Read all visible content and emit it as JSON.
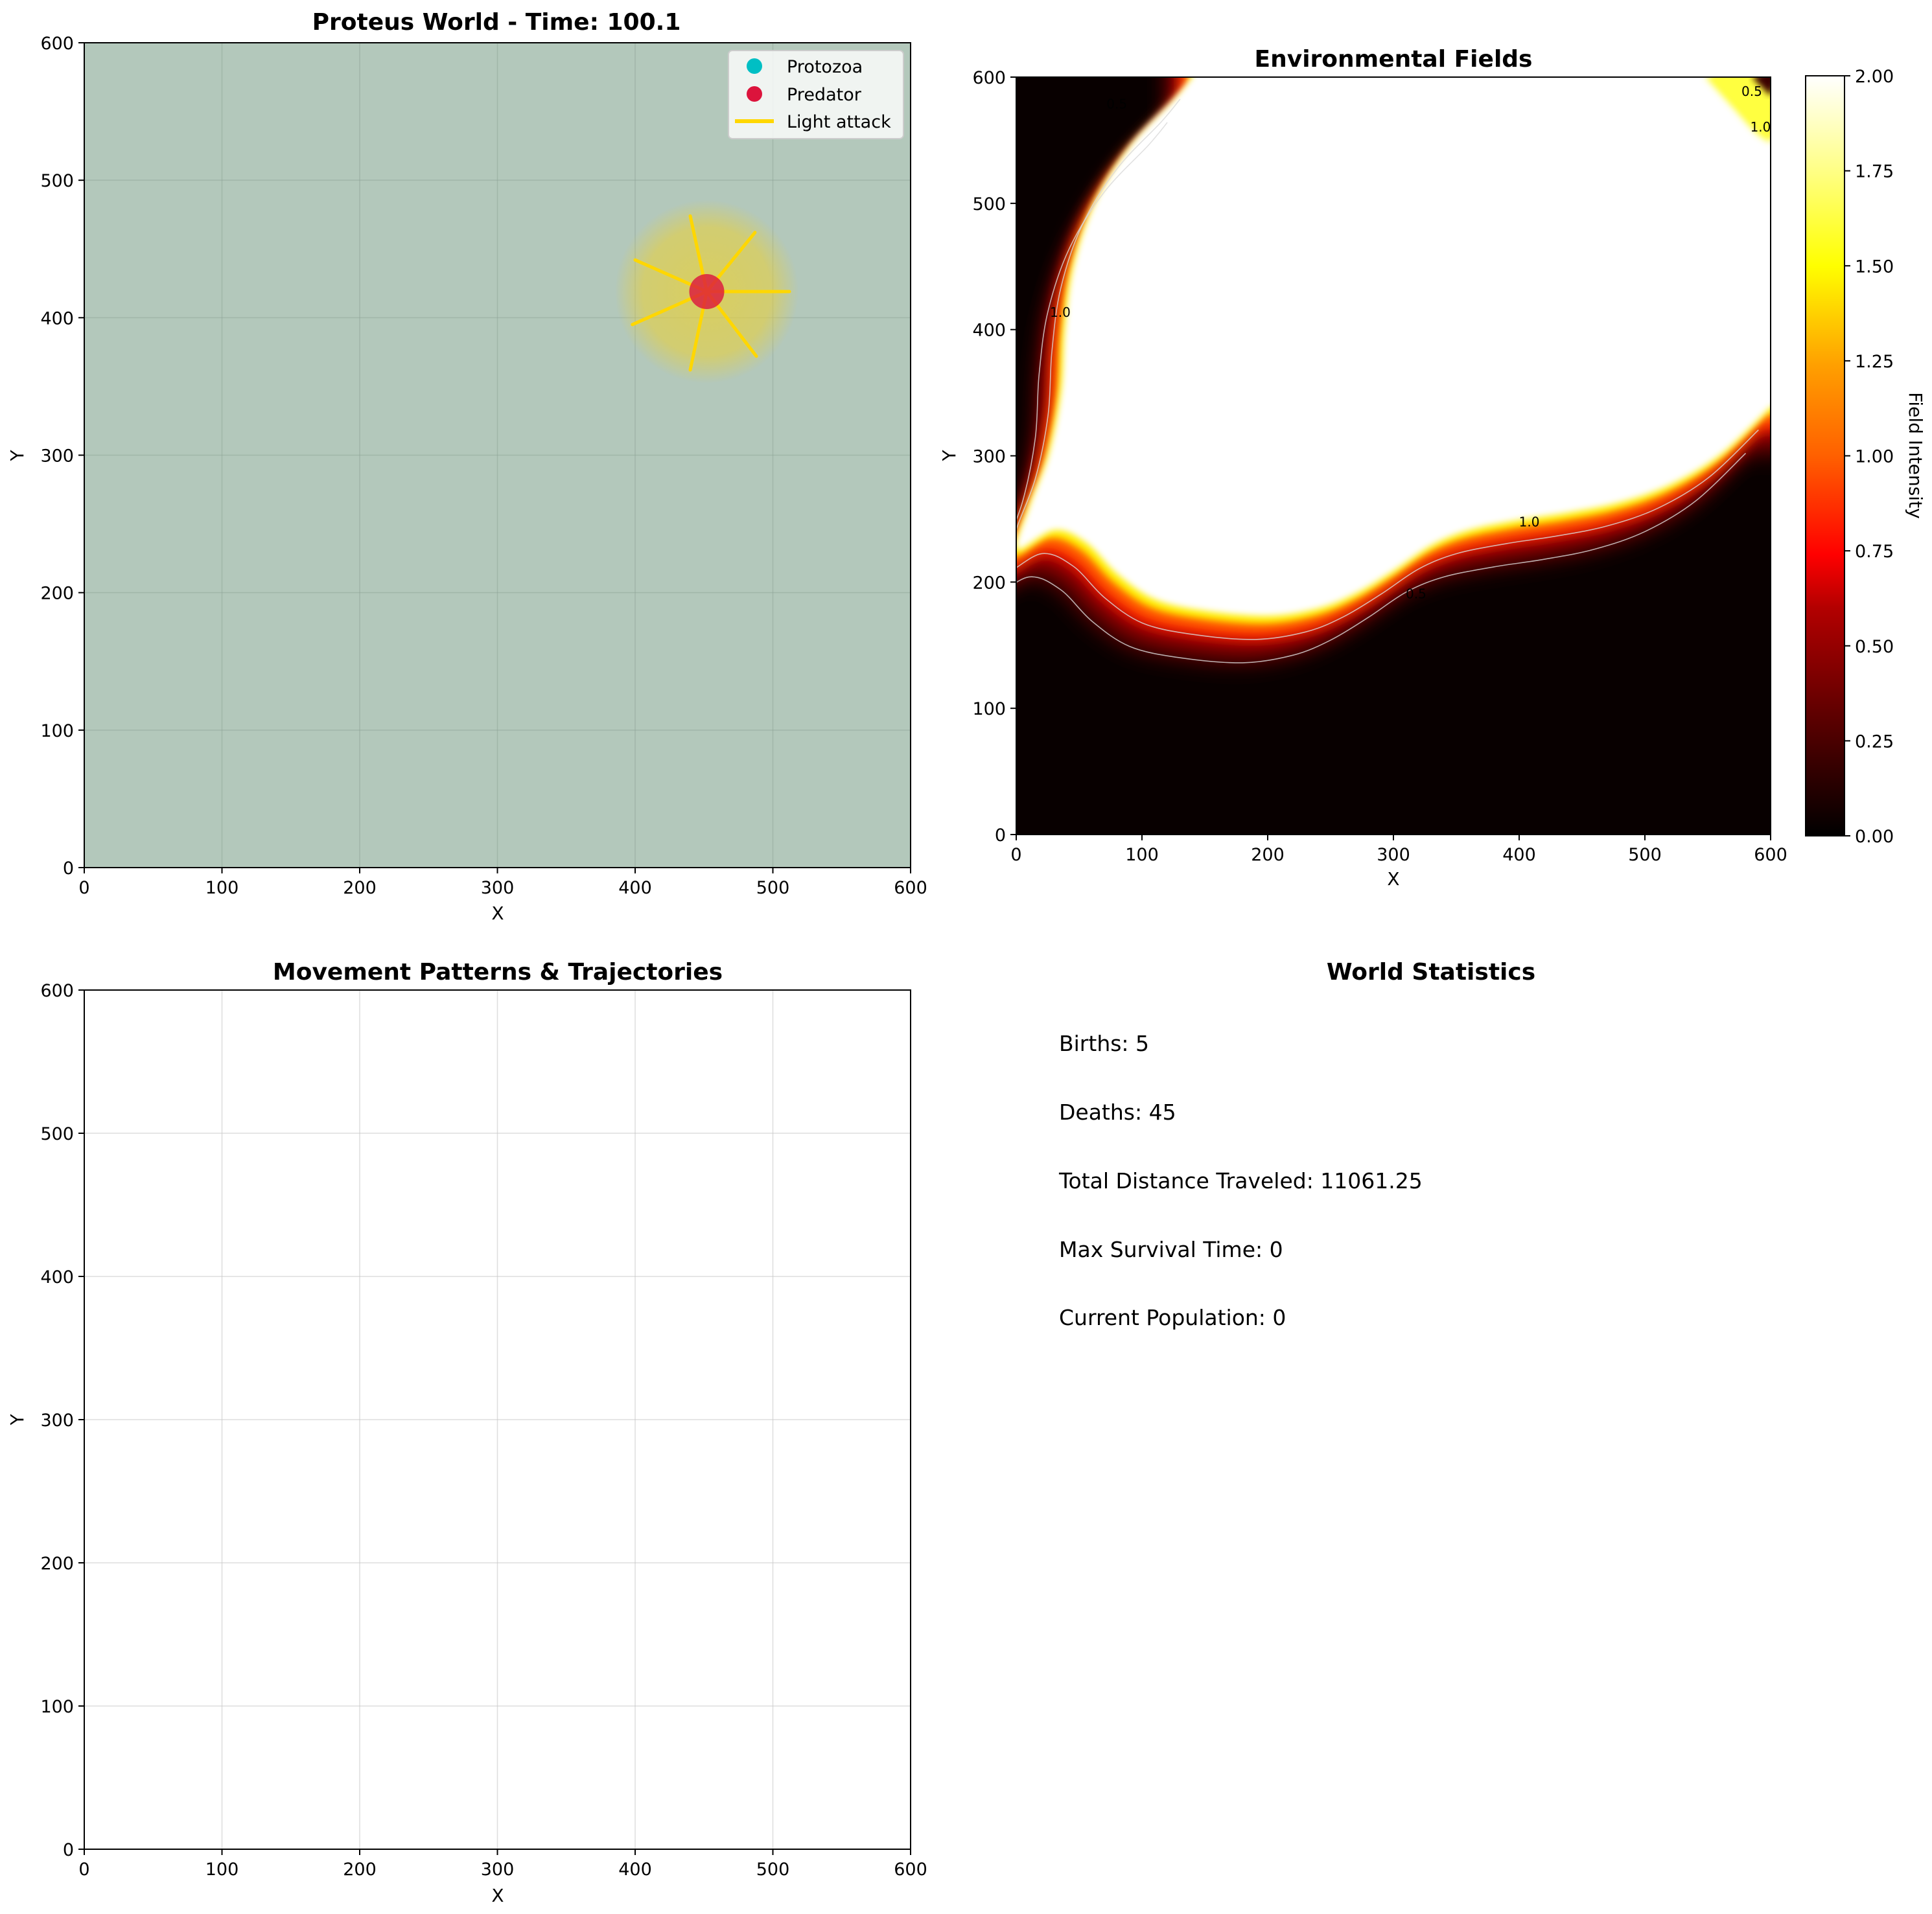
{
  "chart_data": [
    {
      "type": "scatter",
      "title": "Proteus World - Time: 100.1",
      "xlabel": "X",
      "ylabel": "Y",
      "xlim": [
        0,
        600
      ],
      "ylim": [
        0,
        600
      ],
      "xticks": [
        "0",
        "100",
        "200",
        "300",
        "400",
        "500",
        "600"
      ],
      "yticks": [
        "0",
        "100",
        "200",
        "300",
        "400",
        "500",
        "600"
      ],
      "grid": true,
      "background_color": "#b3c8bb",
      "legend": {
        "position": "top-right",
        "entries": [
          {
            "label": "Protozoa",
            "marker": "circle",
            "color": "#00bfc4"
          },
          {
            "label": "Predator",
            "marker": "circle",
            "color": "#dc143c"
          },
          {
            "label": "Light attack",
            "marker": "line",
            "color": "#ffd700"
          }
        ]
      },
      "series": [
        {
          "name": "Predator",
          "color": "#dc143c",
          "points": [
            {
              "x": 452,
              "y": 419
            }
          ]
        }
      ],
      "attack_zone": {
        "center": [
          452,
          419
        ],
        "radius": 58,
        "color": "#e8d44d"
      },
      "light_attack_rays": {
        "color": "#ffd700",
        "origin": [
          452,
          419
        ],
        "endpoints": [
          [
            512,
            419
          ],
          [
            487,
            462
          ],
          [
            440,
            474
          ],
          [
            400,
            442
          ],
          [
            398,
            395
          ],
          [
            440,
            362
          ],
          [
            488,
            372
          ]
        ]
      }
    },
    {
      "type": "heatmap",
      "title": "Environmental Fields",
      "xlabel": "X",
      "ylabel": "Y",
      "xlim": [
        0,
        600
      ],
      "ylim": [
        0,
        600
      ],
      "xticks": [
        "0",
        "100",
        "200",
        "300",
        "400",
        "500",
        "600"
      ],
      "yticks": [
        "0",
        "100",
        "200",
        "300",
        "400",
        "500",
        "600"
      ],
      "colormap": "hot",
      "colorbar": {
        "label": "Field Intensity",
        "range": [
          0,
          2
        ],
        "ticks": [
          "0.00",
          "0.25",
          "0.50",
          "0.75",
          "1.00",
          "1.25",
          "1.50",
          "1.75",
          "2.00"
        ]
      },
      "contour_levels": [
        0.5,
        1.0
      ],
      "contour_labels": [
        {
          "text": "0.5",
          "x": 80,
          "y": 575
        },
        {
          "text": "1.0",
          "x": 35,
          "y": 410
        },
        {
          "text": "1.0",
          "x": 408,
          "y": 244
        },
        {
          "text": "0.5",
          "x": 318,
          "y": 187
        },
        {
          "text": "0.5",
          "x": 585,
          "y": 585
        },
        {
          "text": "1.0",
          "x": 592,
          "y": 557
        }
      ],
      "boundary_main": [
        [
          0,
          225
        ],
        [
          30,
          240
        ],
        [
          55,
          230
        ],
        [
          80,
          205
        ],
        [
          110,
          185
        ],
        [
          150,
          176
        ],
        [
          200,
          172
        ],
        [
          240,
          178
        ],
        [
          270,
          190
        ],
        [
          300,
          208
        ],
        [
          330,
          228
        ],
        [
          360,
          240
        ],
        [
          400,
          248
        ],
        [
          440,
          254
        ],
        [
          480,
          262
        ],
        [
          520,
          276
        ],
        [
          560,
          300
        ],
        [
          600,
          338
        ]
      ],
      "boundary_left": [
        [
          0,
          225
        ],
        [
          10,
          260
        ],
        [
          25,
          300
        ],
        [
          35,
          350
        ],
        [
          38,
          400
        ],
        [
          45,
          450
        ],
        [
          62,
          500
        ],
        [
          90,
          545
        ],
        [
          125,
          582
        ],
        [
          140,
          600
        ]
      ],
      "boundary_corner": [
        [
          548,
          600
        ],
        [
          568,
          578
        ],
        [
          588,
          556
        ],
        [
          600,
          548
        ]
      ]
    },
    {
      "type": "line",
      "title": "Movement Patterns & Trajectories",
      "xlabel": "X",
      "ylabel": "Y",
      "xlim": [
        0,
        600
      ],
      "ylim": [
        0,
        600
      ],
      "xticks": [
        "0",
        "100",
        "200",
        "300",
        "400",
        "500",
        "600"
      ],
      "yticks": [
        "0",
        "100",
        "200",
        "300",
        "400",
        "500",
        "600"
      ],
      "grid": true,
      "series": []
    }
  ],
  "stats_panel": {
    "title": "World Statistics",
    "lines": [
      "Births: 5",
      "Deaths: 45",
      "Total Distance Traveled: 11061.25",
      "Max Survival Time: 0",
      "Current Population: 0"
    ]
  }
}
